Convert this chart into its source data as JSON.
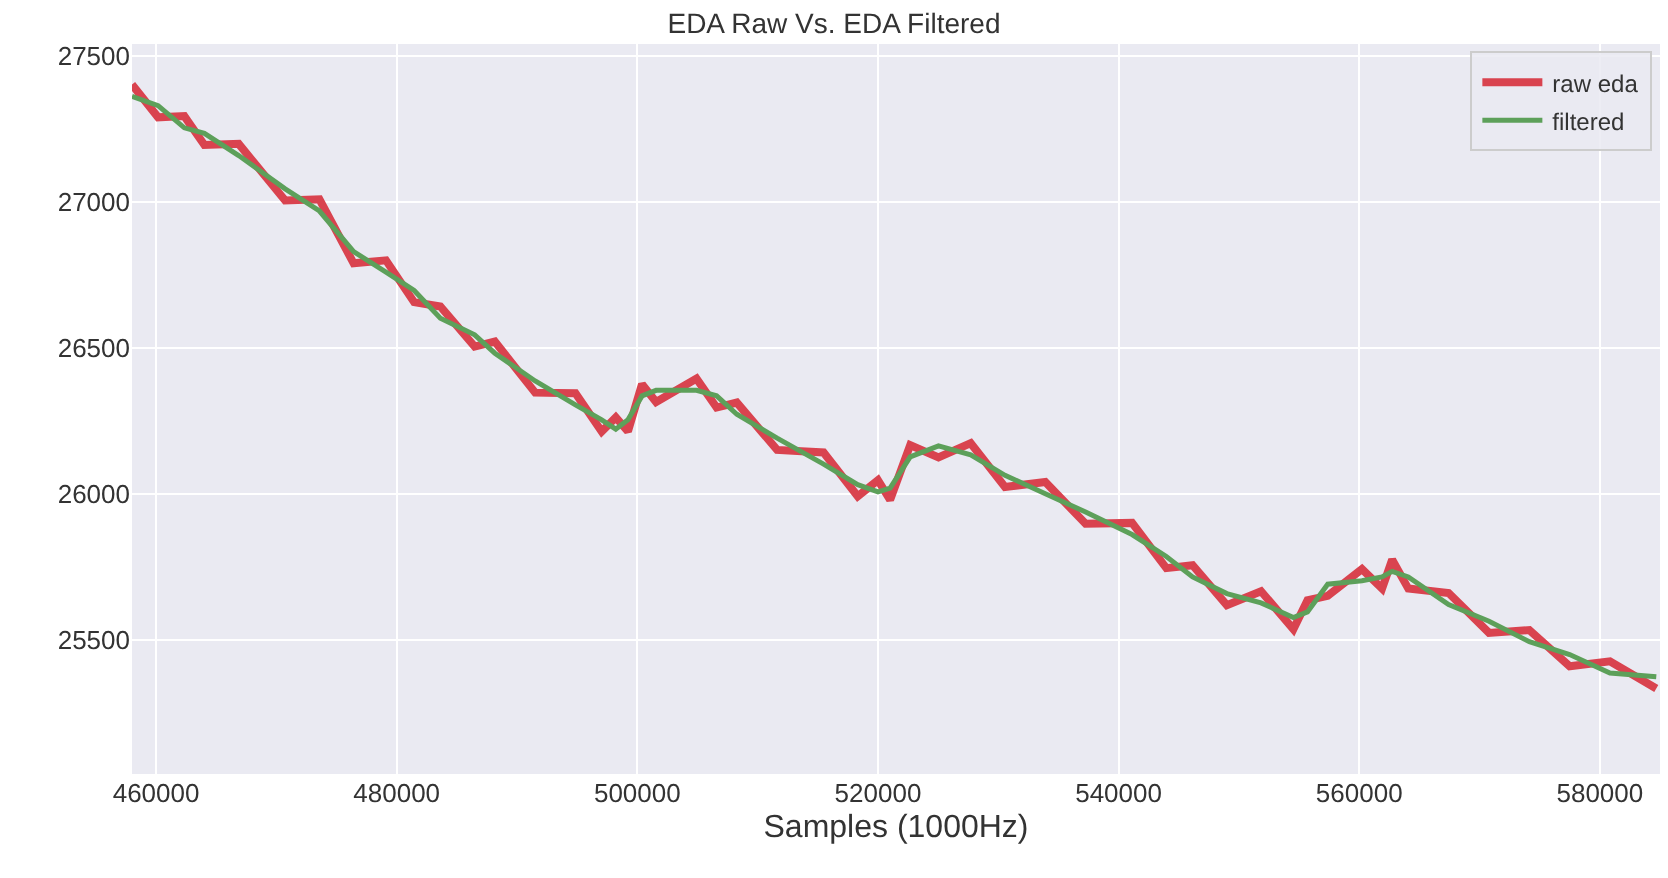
{
  "chart_data": {
    "type": "line",
    "title": "EDA Raw Vs. EDA Filtered",
    "xlabel": "Samples (1000Hz)",
    "x": [
      458000,
      460170,
      462350,
      464020,
      466870,
      470730,
      473580,
      476420,
      479110,
      481450,
      483630,
      486480,
      488160,
      491510,
      494860,
      497040,
      498210,
      499220,
      500390,
      501560,
      504920,
      506590,
      508270,
      511620,
      515480,
      518320,
      520000,
      521010,
      522680,
      525030,
      527710,
      530560,
      533910,
      537260,
      541120,
      543970,
      546150,
      549000,
      551840,
      554530,
      555700,
      557380,
      560230,
      561900,
      562740,
      564080,
      567430,
      570790,
      574140,
      577490,
      580840,
      584690
    ],
    "series": [
      {
        "name": "raw eda",
        "color": "#d9434f",
        "values": [
          27401,
          27289,
          27293,
          27194,
          27198,
          27004,
          27008,
          26789,
          26799,
          26656,
          26641,
          26504,
          26521,
          26346,
          26344,
          26213,
          26261,
          26213,
          26375,
          26314,
          26394,
          26295,
          26312,
          26150,
          26141,
          25991,
          26046,
          25979,
          26166,
          26124,
          26173,
          26023,
          26040,
          25897,
          25900,
          25745,
          25755,
          25618,
          25666,
          25536,
          25635,
          25650,
          25742,
          25675,
          25774,
          25675,
          25660,
          25523,
          25533,
          25409,
          25426,
          25333
        ]
      },
      {
        "name": "filtered",
        "color": "#5da05a",
        "values": [
          27361,
          27329,
          27253,
          27234,
          27158,
          27044,
          26968,
          26829,
          26759,
          26696,
          26601,
          26544,
          26481,
          26386,
          26304,
          26253,
          26221,
          26253,
          26335,
          26354,
          26354,
          26335,
          26272,
          26190,
          26101,
          26031,
          26006,
          26019,
          26126,
          26164,
          26133,
          26063,
          26000,
          25937,
          25860,
          25785,
          25715,
          25658,
          25626,
          25576,
          25595,
          25690,
          25702,
          25715,
          25734,
          25715,
          25620,
          25563,
          25493,
          25449,
          25386,
          25373
        ]
      }
    ],
    "xlim": [
      458000,
      585000
    ],
    "xticks": [
      460000,
      480000,
      500000,
      520000,
      540000,
      560000,
      580000
    ],
    "ylim": [
      25040,
      27540
    ],
    "yticks": [
      25500,
      26000,
      26500,
      27000,
      27500
    ],
    "grid": true,
    "legend": "top right",
    "marker": "none",
    "line_style": "solid"
  }
}
